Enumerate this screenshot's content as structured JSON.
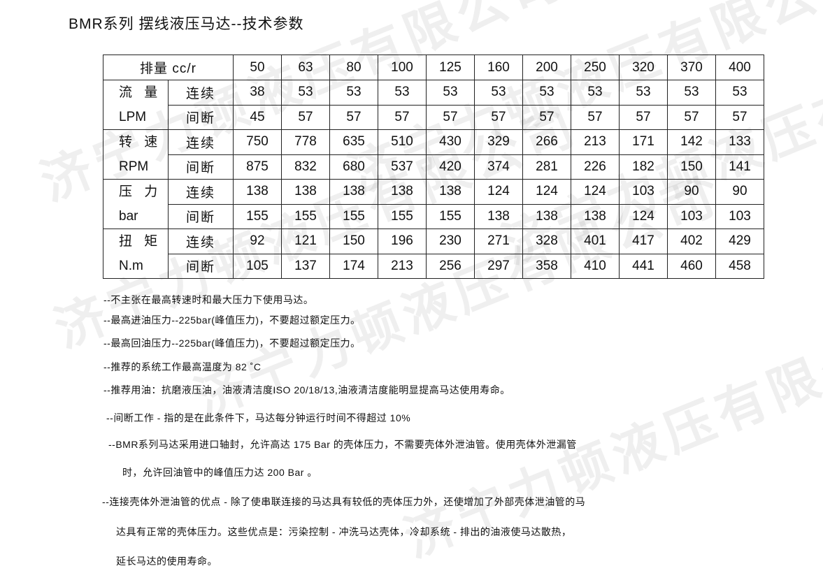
{
  "watermark": "济宁力顿液压有限公司",
  "title": "BMR系列 摆线液压马达--技术参数",
  "table": {
    "header_label": "排量 cc/r",
    "displacements": [
      "50",
      "63",
      "80",
      "100",
      "125",
      "160",
      "200",
      "250",
      "320",
      "370",
      "400"
    ],
    "groups": [
      {
        "label": "流 量",
        "unit": "LPM",
        "rows": [
          {
            "mode": "连续",
            "values": [
              "38",
              "53",
              "53",
              "53",
              "53",
              "53",
              "53",
              "53",
              "53",
              "53",
              "53"
            ]
          },
          {
            "mode": "间断",
            "values": [
              "45",
              "57",
              "57",
              "57",
              "57",
              "57",
              "57",
              "57",
              "57",
              "57",
              "57"
            ]
          }
        ]
      },
      {
        "label": "转 速",
        "unit": "RPM",
        "rows": [
          {
            "mode": "连续",
            "values": [
              "750",
              "778",
              "635",
              "510",
              "430",
              "329",
              "266",
              "213",
              "171",
              "142",
              "133"
            ]
          },
          {
            "mode": "间断",
            "values": [
              "875",
              "832",
              "680",
              "537",
              "420",
              "374",
              "281",
              "226",
              "182",
              "150",
              "141"
            ]
          }
        ]
      },
      {
        "label": "压 力",
        "unit": "bar",
        "rows": [
          {
            "mode": "连续",
            "values": [
              "138",
              "138",
              "138",
              "138",
              "138",
              "124",
              "124",
              "124",
              "103",
              "90",
              "90"
            ]
          },
          {
            "mode": "间断",
            "values": [
              "155",
              "155",
              "155",
              "155",
              "155",
              "138",
              "138",
              "138",
              "124",
              "103",
              "103"
            ]
          }
        ]
      },
      {
        "label": "扭 矩",
        "unit": "N.m",
        "rows": [
          {
            "mode": "连续",
            "values": [
              "92",
              "121",
              "150",
              "196",
              "230",
              "271",
              "328",
              "401",
              "417",
              "402",
              "429"
            ]
          },
          {
            "mode": "间断",
            "values": [
              "105",
              "137",
              "174",
              "213",
              "256",
              "297",
              "358",
              "410",
              "441",
              "460",
              "458"
            ]
          }
        ]
      }
    ]
  },
  "notes": [
    "--不主张在最高转速时和最大压力下使用马达。",
    "--最高进油压力--225bar(峰值压力)，不要超过额定压力。",
    "--最高回油压力--225bar(峰值压力)，不要超过额定压力。",
    "--推荐的系统工作最高温度为 82 ˚C",
    "--推荐用油：抗磨液压油，油液清洁度ISO 20/18/13,油液清洁度能明显提高马达使用寿命。",
    "--间断工作 - 指的是在此条件下，马达每分钟运行时间不得超过 10%",
    "--BMR系列马达采用进口轴封，允许高达 175 Bar 的壳体压力，不需要壳体外泄油管。使用壳体外泄漏管",
    "时，允许回油管中的峰值压力达 200 Bar 。",
    "--连接壳体外泄油管的优点 - 除了使串联连接的马达具有较低的壳体压力外，还使增加了外部壳体泄油管的马",
    "达具有正常的壳体压力。这些优点是：污染控制 - 冲洗马达壳体，冷却系统 - 排出的油液使马达散热，",
    "延长马达的使用寿命。"
  ]
}
